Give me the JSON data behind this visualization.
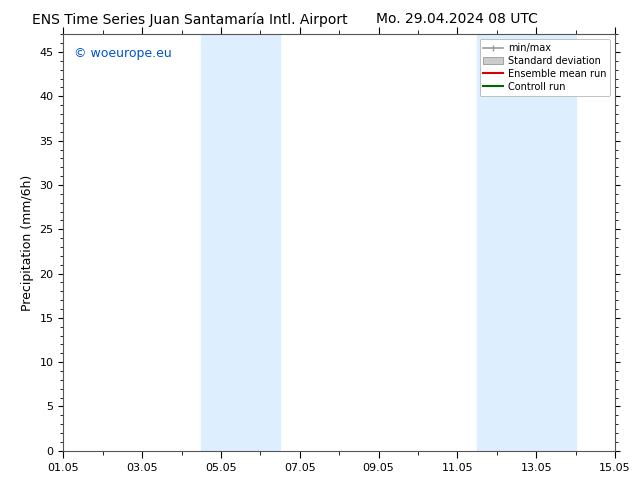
{
  "title_left": "ENS Time Series Juan Santamaría Intl. Airport",
  "title_right": "Mo. 29.04.2024 08 UTC",
  "ylabel": "Precipitation (mm/6h)",
  "ylim": [
    0,
    47
  ],
  "yticks": [
    0,
    5,
    10,
    15,
    20,
    25,
    30,
    35,
    40,
    45
  ],
  "xlim": [
    0,
    14
  ],
  "xtick_labels": [
    "01.05",
    "03.05",
    "05.05",
    "07.05",
    "09.05",
    "11.05",
    "13.05",
    "15.05"
  ],
  "xtick_positions": [
    0,
    2,
    4,
    6,
    8,
    10,
    12,
    14
  ],
  "shaded_bands": [
    {
      "x_start": 3.5,
      "x_end": 5.5,
      "color": "#ddeeff"
    },
    {
      "x_start": 10.5,
      "x_end": 13.0,
      "color": "#ddeeff"
    }
  ],
  "watermark_text": "© woeurope.eu",
  "watermark_color": "#0055cc",
  "legend_entries": [
    {
      "label": "min/max",
      "color": "#999999",
      "type": "hline"
    },
    {
      "label": "Standard deviation",
      "color": "#cccccc",
      "type": "band"
    },
    {
      "label": "Ensemble mean run",
      "color": "#dd0000",
      "type": "line"
    },
    {
      "label": "Controll run",
      "color": "#006600",
      "type": "line"
    }
  ],
  "background_color": "#ffffff",
  "plot_bg_color": "#ffffff",
  "title_fontsize": 10,
  "axis_fontsize": 9,
  "tick_fontsize": 8,
  "legend_fontsize": 7
}
